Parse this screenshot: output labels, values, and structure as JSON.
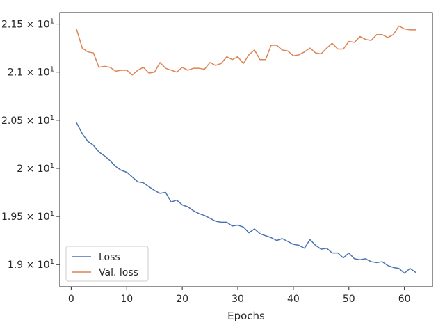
{
  "chart_data": {
    "type": "line",
    "title": "",
    "xlabel": "Epochs",
    "ylabel": "",
    "xlim": [
      -2.05,
      65.05
    ],
    "ylim": [
      18.77,
      21.62
    ],
    "grid": false,
    "legend_position": "lower-left",
    "x_ticks": [
      0,
      10,
      20,
      30,
      40,
      50,
      60
    ],
    "x_tick_labels": [
      "0",
      "10",
      "20",
      "30",
      "40",
      "50",
      "60"
    ],
    "y_ticks": [
      {
        "value": 19.0,
        "mantissa": "1.9",
        "exponent": "1"
      },
      {
        "value": 19.5,
        "mantissa": "1.95",
        "exponent": "1"
      },
      {
        "value": 20.0,
        "mantissa": "2",
        "exponent": "1"
      },
      {
        "value": 20.5,
        "mantissa": "2.05",
        "exponent": "1"
      },
      {
        "value": 21.0,
        "mantissa": "2.1",
        "exponent": "1"
      },
      {
        "value": 21.5,
        "mantissa": "2.15",
        "exponent": "1"
      }
    ],
    "y_tick_multiplier": "× 10",
    "x": [
      1,
      2,
      3,
      4,
      5,
      6,
      7,
      8,
      9,
      10,
      11,
      12,
      13,
      14,
      15,
      16,
      17,
      18,
      19,
      20,
      21,
      22,
      23,
      24,
      25,
      26,
      27,
      28,
      29,
      30,
      31,
      32,
      33,
      34,
      35,
      36,
      37,
      38,
      39,
      40,
      41,
      42,
      43,
      44,
      45,
      46,
      47,
      48,
      49,
      50,
      51,
      52,
      53,
      54,
      55,
      56,
      57,
      58,
      59,
      60,
      61,
      62
    ],
    "series": [
      {
        "name": "Loss",
        "color": "#4c72b0",
        "values": [
          20.47,
          20.36,
          20.28,
          20.24,
          20.17,
          20.13,
          20.08,
          20.02,
          19.98,
          19.96,
          19.91,
          19.86,
          19.85,
          19.81,
          19.77,
          19.74,
          19.75,
          19.65,
          19.67,
          19.62,
          19.6,
          19.56,
          19.53,
          19.51,
          19.48,
          19.45,
          19.44,
          19.44,
          19.4,
          19.41,
          19.39,
          19.33,
          19.37,
          19.32,
          19.3,
          19.28,
          19.25,
          19.27,
          19.24,
          19.21,
          19.2,
          19.17,
          19.26,
          19.2,
          19.16,
          19.17,
          19.12,
          19.12,
          19.07,
          19.12,
          19.06,
          19.05,
          19.06,
          19.03,
          19.02,
          19.03,
          18.99,
          18.97,
          18.96,
          18.91,
          18.96,
          18.92
        ]
      },
      {
        "name": "Val. loss",
        "color": "#dd8452",
        "values": [
          21.44,
          21.25,
          21.21,
          21.2,
          21.05,
          21.06,
          21.05,
          21.01,
          21.02,
          21.02,
          20.97,
          21.02,
          21.05,
          20.99,
          21.0,
          21.1,
          21.04,
          21.02,
          21.0,
          21.05,
          21.02,
          21.04,
          21.04,
          21.03,
          21.1,
          21.07,
          21.09,
          21.16,
          21.13,
          21.16,
          21.09,
          21.18,
          21.23,
          21.13,
          21.13,
          21.28,
          21.28,
          21.23,
          21.22,
          21.17,
          21.18,
          21.21,
          21.25,
          21.2,
          21.19,
          21.25,
          21.3,
          21.24,
          21.24,
          21.32,
          21.31,
          21.37,
          21.34,
          21.33,
          21.39,
          21.39,
          21.36,
          21.39,
          21.48,
          21.45,
          21.44,
          21.44
        ]
      }
    ]
  }
}
